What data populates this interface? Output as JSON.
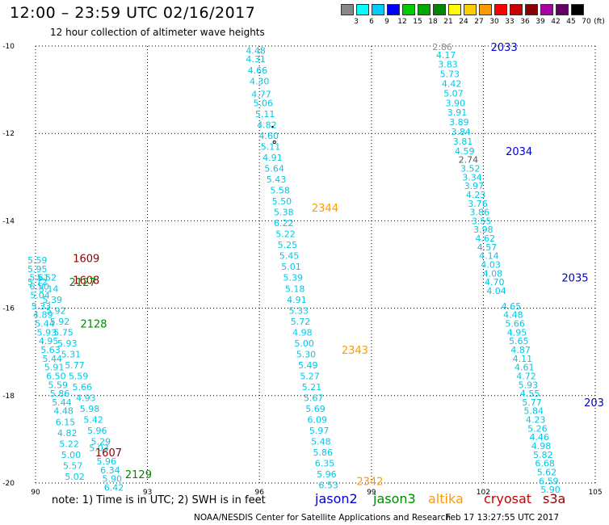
{
  "title": "12:00 – 23:59 UTC 02/16/2017",
  "subtitle": "12 hour collection of altimeter wave heights",
  "note": "note: 1) Time is in UTC; 2) SWH is in feet",
  "satellites": [
    {
      "name": "jason2",
      "color": "#0000cc"
    },
    {
      "name": "jason3",
      "color": "#008800"
    },
    {
      "name": "altika",
      "color": "#ff9900"
    },
    {
      "name": "cryosat",
      "color": "#cc0000"
    },
    {
      "name": "s3a",
      "color": "#8b0000"
    }
  ],
  "credit": "NOAA/NESDIS Center for Satellite Applications and Research",
  "timestamp": "Feb 17 13:27:55 UTC 2017",
  "scale": {
    "unit": "(ft)",
    "labels": [
      "3",
      "6",
      "9",
      "12",
      "15",
      "18",
      "21",
      "24",
      "27",
      "30",
      "33",
      "36",
      "39",
      "42",
      "45",
      "70"
    ],
    "colors": [
      "#888888",
      "#00ffff",
      "#00ccff",
      "#0000ff",
      "#00cc00",
      "#00aa00",
      "#008800",
      "#ffff00",
      "#ffcc00",
      "#ff9900",
      "#ff0000",
      "#cc0000",
      "#880000",
      "#aa00aa",
      "#660066",
      "#000000"
    ]
  },
  "chart_data": {
    "type": "scatter",
    "x_ticks": [
      "90",
      "93",
      "96",
      "99",
      "102",
      "105"
    ],
    "y_ticks": [
      "-10",
      "-12",
      "-14",
      "-16",
      "-18",
      "-20"
    ],
    "xlim": [
      90,
      105
    ],
    "ylim": [
      -20,
      -10
    ],
    "grid": true,
    "tracks": [
      {
        "id": "2033",
        "label_x": 102.2,
        "label_y": -10.02,
        "color": "#0000cc"
      },
      {
        "id": "2034",
        "label_x": 102.6,
        "label_y": -12.4,
        "color": "#0000cc"
      },
      {
        "id": "2035",
        "label_x": 104.1,
        "label_y": -15.3,
        "color": "#0000cc"
      },
      {
        "id": "203",
        "label_x": 104.7,
        "label_y": -18.15,
        "color": "#0000cc"
      },
      {
        "id": "2344",
        "label_x": 97.4,
        "label_y": -13.7,
        "color": "#ff9900"
      },
      {
        "id": "2343",
        "label_x": 98.2,
        "label_y": -16.95,
        "color": "#ff9900"
      },
      {
        "id": "2342",
        "label_x": 98.6,
        "label_y": -19.95,
        "color": "#ff9900"
      },
      {
        "id": "1609",
        "label_x": 91.0,
        "label_y": -14.85,
        "color": "#8b0000"
      },
      {
        "id": "1608",
        "label_x": 91.0,
        "label_y": -15.35,
        "color": "#8b0000"
      },
      {
        "id": "1607",
        "label_x": 91.6,
        "label_y": -19.3,
        "color": "#8b0000"
      },
      {
        "id": "2127",
        "label_x": 90.9,
        "label_y": -15.4,
        "color": "#008800"
      },
      {
        "id": "2128",
        "label_x": 91.2,
        "label_y": -16.35,
        "color": "#008800"
      },
      {
        "id": "2129",
        "label_x": 92.4,
        "label_y": -19.8,
        "color": "#008800"
      }
    ],
    "points": [
      {
        "track": "A1",
        "x": 95.9,
        "y": -10.1,
        "swh": "4.48"
      },
      {
        "track": "A1",
        "x": 95.9,
        "y": -10.3,
        "swh": "4.31"
      },
      {
        "track": "A1",
        "x": 95.95,
        "y": -10.55,
        "swh": "4.66"
      },
      {
        "track": "A1",
        "x": 96.0,
        "y": -10.8,
        "swh": "4.30"
      },
      {
        "track": "A1",
        "x": 96.05,
        "y": -11.1,
        "swh": "4.77"
      },
      {
        "track": "A1",
        "x": 96.1,
        "y": -11.3,
        "swh": "5.06"
      },
      {
        "track": "A1",
        "x": 96.15,
        "y": -11.55,
        "swh": "5.11"
      },
      {
        "track": "A1",
        "x": 96.2,
        "y": -11.8,
        "swh": "4.82"
      },
      {
        "track": "A1",
        "x": 96.25,
        "y": -12.05,
        "swh": "4.60"
      },
      {
        "track": "A1",
        "x": 96.3,
        "y": -12.3,
        "swh": "5.11"
      },
      {
        "track": "A1",
        "x": 96.35,
        "y": -12.55,
        "swh": "4.91"
      },
      {
        "track": "A1",
        "x": 96.4,
        "y": -12.8,
        "swh": "5.64"
      },
      {
        "track": "A1",
        "x": 96.45,
        "y": -13.05,
        "swh": "5.43"
      },
      {
        "track": "A1",
        "x": 96.55,
        "y": -13.3,
        "swh": "5.58"
      },
      {
        "track": "A1",
        "x": 96.6,
        "y": -13.55,
        "swh": "5.50"
      },
      {
        "track": "A1",
        "x": 96.65,
        "y": -13.8,
        "swh": "5.38"
      },
      {
        "track": "A1",
        "x": 96.65,
        "y": -14.05,
        "swh": "6.22"
      },
      {
        "track": "A1",
        "x": 96.7,
        "y": -14.3,
        "swh": "5.22"
      },
      {
        "track": "A1",
        "x": 96.75,
        "y": -14.55,
        "swh": "5.25"
      },
      {
        "track": "A1",
        "x": 96.8,
        "y": -14.8,
        "swh": "5.45"
      },
      {
        "track": "A1",
        "x": 96.85,
        "y": -15.05,
        "swh": "5.01"
      },
      {
        "track": "A1",
        "x": 96.9,
        "y": -15.3,
        "swh": "5.39"
      },
      {
        "track": "A1",
        "x": 96.95,
        "y": -15.55,
        "swh": "5.18"
      },
      {
        "track": "A1",
        "x": 97.0,
        "y": -15.8,
        "swh": "4.91"
      },
      {
        "track": "A1",
        "x": 97.05,
        "y": -16.05,
        "swh": "5.33"
      },
      {
        "track": "A1",
        "x": 97.1,
        "y": -16.3,
        "swh": "5.72"
      },
      {
        "track": "A1",
        "x": 97.15,
        "y": -16.55,
        "swh": "4.98"
      },
      {
        "track": "A1",
        "x": 97.2,
        "y": -16.8,
        "swh": "5.00"
      },
      {
        "track": "A1",
        "x": 97.25,
        "y": -17.05,
        "swh": "5.30"
      },
      {
        "track": "A1",
        "x": 97.3,
        "y": -17.3,
        "swh": "5.49"
      },
      {
        "track": "A1",
        "x": 97.35,
        "y": -17.55,
        "swh": "5.27"
      },
      {
        "track": "A1",
        "x": 97.4,
        "y": -17.8,
        "swh": "5.21"
      },
      {
        "track": "A1",
        "x": 97.45,
        "y": -18.05,
        "swh": "5.67"
      },
      {
        "track": "A1",
        "x": 97.5,
        "y": -18.3,
        "swh": "5.69"
      },
      {
        "track": "A1",
        "x": 97.55,
        "y": -18.55,
        "swh": "6.09"
      },
      {
        "track": "A1",
        "x": 97.6,
        "y": -18.8,
        "swh": "5.97"
      },
      {
        "track": "A1",
        "x": 97.65,
        "y": -19.05,
        "swh": "5.48"
      },
      {
        "track": "A1",
        "x": 97.7,
        "y": -19.3,
        "swh": "5.86"
      },
      {
        "track": "A1",
        "x": 97.75,
        "y": -19.55,
        "swh": "6.35"
      },
      {
        "track": "A1",
        "x": 97.8,
        "y": -19.8,
        "swh": "5.96"
      },
      {
        "track": "A1",
        "x": 97.85,
        "y": -20.05,
        "swh": "6.53"
      },
      {
        "track": "J1",
        "x": 100.9,
        "y": -10.02,
        "swh": "2.86",
        "color": "#888888"
      },
      {
        "track": "J1",
        "x": 101.0,
        "y": -10.2,
        "swh": "4.17"
      },
      {
        "track": "J1",
        "x": 101.05,
        "y": -10.42,
        "swh": "3.83"
      },
      {
        "track": "J1",
        "x": 101.1,
        "y": -10.64,
        "swh": "5.73"
      },
      {
        "track": "J1",
        "x": 101.15,
        "y": -10.86,
        "swh": "4.42"
      },
      {
        "track": "J1",
        "x": 101.2,
        "y": -11.08,
        "swh": "5.07"
      },
      {
        "track": "J1",
        "x": 101.25,
        "y": -11.3,
        "swh": "3.90"
      },
      {
        "track": "J1",
        "x": 101.3,
        "y": -11.52,
        "swh": "3.91"
      },
      {
        "track": "J1",
        "x": 101.35,
        "y": -11.74,
        "swh": "3.89"
      },
      {
        "track": "J1",
        "x": 101.4,
        "y": -11.96,
        "swh": "3.84"
      },
      {
        "track": "J1",
        "x": 101.45,
        "y": -12.18,
        "swh": "3.81"
      },
      {
        "track": "J1",
        "x": 101.5,
        "y": -12.4,
        "swh": "4.59"
      },
      {
        "track": "J1",
        "x": 101.6,
        "y": -12.6,
        "swh": "2.74",
        "color": "#555555"
      },
      {
        "track": "J1",
        "x": 101.65,
        "y": -12.8,
        "swh": "3.52"
      },
      {
        "track": "J1",
        "x": 101.7,
        "y": -13.0,
        "swh": "3.34"
      },
      {
        "track": "J1",
        "x": 101.75,
        "y": -13.2,
        "swh": "3.97"
      },
      {
        "track": "J1",
        "x": 101.8,
        "y": -13.4,
        "swh": "4.23"
      },
      {
        "track": "J1",
        "x": 101.85,
        "y": -13.6,
        "swh": "3.76"
      },
      {
        "track": "J1",
        "x": 101.9,
        "y": -13.8,
        "swh": "3.86"
      },
      {
        "track": "J1",
        "x": 101.95,
        "y": -14.0,
        "swh": "3.55"
      },
      {
        "track": "J1",
        "x": 102.0,
        "y": -14.2,
        "swh": "3.98"
      },
      {
        "track": "J1",
        "x": 102.05,
        "y": -14.4,
        "swh": "4.62"
      },
      {
        "track": "J1",
        "x": 102.1,
        "y": -14.6,
        "swh": "4.57"
      },
      {
        "track": "J1",
        "x": 102.15,
        "y": -14.8,
        "swh": "4.14"
      },
      {
        "track": "J1",
        "x": 102.2,
        "y": -15.0,
        "swh": "4.03"
      },
      {
        "track": "J1",
        "x": 102.25,
        "y": -15.2,
        "swh": "4.08"
      },
      {
        "track": "J1",
        "x": 102.3,
        "y": -15.4,
        "swh": "4.70"
      },
      {
        "track": "J1",
        "x": 102.35,
        "y": -15.6,
        "swh": "4.04"
      },
      {
        "track": "J1",
        "x": 102.75,
        "y": -15.95,
        "swh": "4.65"
      },
      {
        "track": "J1",
        "x": 102.8,
        "y": -16.15,
        "swh": "4.48"
      },
      {
        "track": "J1",
        "x": 102.85,
        "y": -16.35,
        "swh": "5.66"
      },
      {
        "track": "J1",
        "x": 102.9,
        "y": -16.55,
        "swh": "4.95"
      },
      {
        "track": "J1",
        "x": 102.95,
        "y": -16.75,
        "swh": "5.65"
      },
      {
        "track": "J1",
        "x": 103.0,
        "y": -16.95,
        "swh": "4.87"
      },
      {
        "track": "J1",
        "x": 103.05,
        "y": -17.15,
        "swh": "4.11"
      },
      {
        "track": "J1",
        "x": 103.1,
        "y": -17.35,
        "swh": "4.61"
      },
      {
        "track": "J1",
        "x": 103.15,
        "y": -17.55,
        "swh": "4.72"
      },
      {
        "track": "J1",
        "x": 103.2,
        "y": -17.75,
        "swh": "5.93"
      },
      {
        "track": "J1",
        "x": 103.25,
        "y": -17.95,
        "swh": "4.55"
      },
      {
        "track": "J1",
        "x": 103.3,
        "y": -18.15,
        "swh": "5.77"
      },
      {
        "track": "J1",
        "x": 103.35,
        "y": -18.35,
        "swh": "5.84"
      },
      {
        "track": "J1",
        "x": 103.4,
        "y": -18.55,
        "swh": "4.23"
      },
      {
        "track": "J1",
        "x": 103.45,
        "y": -18.75,
        "swh": "5.26"
      },
      {
        "track": "J1",
        "x": 103.5,
        "y": -18.95,
        "swh": "4.46"
      },
      {
        "track": "J1",
        "x": 103.55,
        "y": -19.15,
        "swh": "4.98"
      },
      {
        "track": "J1",
        "x": 103.6,
        "y": -19.35,
        "swh": "5.82"
      },
      {
        "track": "J1",
        "x": 103.65,
        "y": -19.55,
        "swh": "6.68"
      },
      {
        "track": "J1",
        "x": 103.7,
        "y": -19.75,
        "swh": "5.62"
      },
      {
        "track": "J1",
        "x": 103.75,
        "y": -19.95,
        "swh": "6.59"
      },
      {
        "track": "J1",
        "x": 103.8,
        "y": -20.15,
        "swh": "5.90"
      },
      {
        "track": "L1",
        "x": 90.05,
        "y": -14.9,
        "swh": "5.59"
      },
      {
        "track": "L1",
        "x": 90.05,
        "y": -15.1,
        "swh": "5.95"
      },
      {
        "track": "L1",
        "x": 90.1,
        "y": -15.3,
        "swh": "5.61"
      },
      {
        "track": "L1",
        "x": 90.05,
        "y": -15.4,
        "swh": "5.72"
      },
      {
        "track": "L1",
        "x": 90.1,
        "y": -15.5,
        "swh": "6.50"
      },
      {
        "track": "L1",
        "x": 90.12,
        "y": -15.7,
        "swh": "5.04"
      },
      {
        "track": "L1",
        "x": 90.15,
        "y": -15.95,
        "swh": "5.33"
      },
      {
        "track": "L1",
        "x": 90.2,
        "y": -16.15,
        "swh": "4.89"
      },
      {
        "track": "L1",
        "x": 90.25,
        "y": -16.35,
        "swh": "5.44"
      },
      {
        "track": "L1",
        "x": 90.3,
        "y": -16.55,
        "swh": "5.93"
      },
      {
        "track": "L1",
        "x": 90.35,
        "y": -16.75,
        "swh": "4.95"
      },
      {
        "track": "L1",
        "x": 90.4,
        "y": -16.95,
        "swh": "5.63"
      },
      {
        "track": "L1",
        "x": 90.45,
        "y": -17.15,
        "swh": "5.44"
      },
      {
        "track": "L1",
        "x": 90.5,
        "y": -17.35,
        "swh": "5.91"
      },
      {
        "track": "L1",
        "x": 90.55,
        "y": -17.55,
        "swh": "6.50"
      },
      {
        "track": "L1",
        "x": 90.6,
        "y": -17.75,
        "swh": "5.59"
      },
      {
        "track": "L1",
        "x": 90.65,
        "y": -17.95,
        "swh": "5.86"
      },
      {
        "track": "L1",
        "x": 90.7,
        "y": -18.15,
        "swh": "5.44"
      },
      {
        "track": "L1",
        "x": 90.75,
        "y": -18.35,
        "swh": "4.48"
      },
      {
        "track": "L1",
        "x": 90.8,
        "y": -18.6,
        "swh": "6.15"
      },
      {
        "track": "L1",
        "x": 90.85,
        "y": -18.85,
        "swh": "4.82"
      },
      {
        "track": "L1",
        "x": 90.9,
        "y": -19.1,
        "swh": "5.22"
      },
      {
        "track": "L1",
        "x": 90.95,
        "y": -19.35,
        "swh": "5.00"
      },
      {
        "track": "L1",
        "x": 91.0,
        "y": -19.6,
        "swh": "5.57"
      },
      {
        "track": "L1",
        "x": 91.05,
        "y": -19.85,
        "swh": "5.02"
      },
      {
        "track": "L2",
        "x": 90.3,
        "y": -15.3,
        "swh": "5.52"
      },
      {
        "track": "L2",
        "x": 90.35,
        "y": -15.55,
        "swh": "5.14"
      },
      {
        "track": "L2",
        "x": 90.45,
        "y": -15.8,
        "swh": "5.39"
      },
      {
        "track": "L2",
        "x": 90.55,
        "y": -16.05,
        "swh": "5.92"
      },
      {
        "track": "L2",
        "x": 90.65,
        "y": -16.3,
        "swh": "5.92"
      },
      {
        "track": "L2",
        "x": 90.75,
        "y": -16.55,
        "swh": "5.75"
      },
      {
        "track": "L2",
        "x": 90.85,
        "y": -16.8,
        "swh": "5.93"
      },
      {
        "track": "L2",
        "x": 90.95,
        "y": -17.05,
        "swh": "5.31"
      },
      {
        "track": "L2",
        "x": 91.05,
        "y": -17.3,
        "swh": "5.77"
      },
      {
        "track": "L2",
        "x": 91.15,
        "y": -17.55,
        "swh": "5.59"
      },
      {
        "track": "L2",
        "x": 91.25,
        "y": -17.8,
        "swh": "5.66"
      },
      {
        "track": "L2",
        "x": 91.35,
        "y": -18.05,
        "swh": "4.93"
      },
      {
        "track": "L2",
        "x": 91.45,
        "y": -18.3,
        "swh": "5.98"
      },
      {
        "track": "L2",
        "x": 91.55,
        "y": -18.55,
        "swh": "5.42"
      },
      {
        "track": "L2",
        "x": 91.65,
        "y": -18.8,
        "swh": "5.96"
      },
      {
        "track": "L2",
        "x": 91.75,
        "y": -19.05,
        "swh": "5.29"
      },
      {
        "track": "L2",
        "x": 91.7,
        "y": -19.2,
        "swh": "5.03"
      },
      {
        "track": "L2",
        "x": 91.9,
        "y": -19.5,
        "swh": "5.96"
      },
      {
        "track": "L2",
        "x": 92.0,
        "y": -19.7,
        "swh": "6.34"
      },
      {
        "track": "L2",
        "x": 92.05,
        "y": -19.9,
        "swh": "5.90"
      },
      {
        "track": "L2",
        "x": 92.1,
        "y": -20.1,
        "swh": "6.42"
      }
    ]
  }
}
